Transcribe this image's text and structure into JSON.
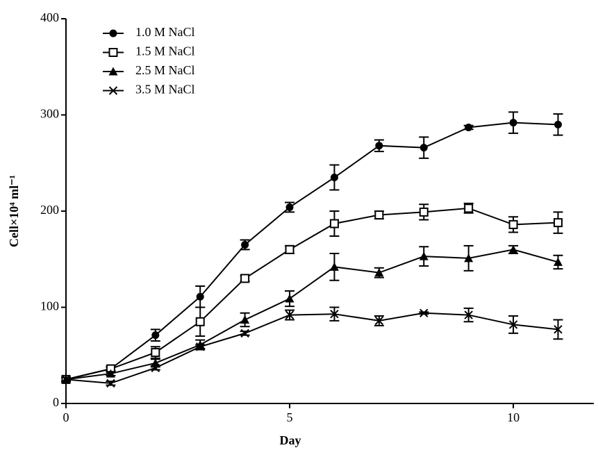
{
  "chart_data": {
    "type": "line",
    "x_label": "Day",
    "y_label": "Cell×10⁴ ml⁻¹",
    "x": [
      0,
      1,
      2,
      3,
      4,
      5,
      6,
      7,
      8,
      9,
      10,
      11
    ],
    "series": [
      {
        "name": "1.0 M NaCl",
        "color": "#000000",
        "marker": "circle",
        "values": [
          25,
          36,
          71,
          111,
          165,
          204,
          235,
          268,
          266,
          287,
          292,
          290
        ],
        "errors": [
          2,
          2,
          6,
          11,
          5,
          5,
          13,
          6,
          11,
          2,
          11,
          11
        ]
      },
      {
        "name": "1.5 M NaCl",
        "color": "#000000",
        "marker": "square",
        "values": [
          25,
          36,
          53,
          85,
          130,
          160,
          187,
          196,
          199,
          203,
          186,
          188
        ],
        "errors": [
          2,
          2,
          6,
          15,
          3,
          4,
          13,
          4,
          8,
          5,
          8,
          11
        ]
      },
      {
        "name": "2.5 M NaCl",
        "color": "#000000",
        "marker": "triangle",
        "values": [
          25,
          31,
          42,
          61,
          87,
          109,
          142,
          136,
          153,
          151,
          160,
          147
        ],
        "errors": [
          2,
          2,
          4,
          5,
          7,
          8,
          14,
          5,
          10,
          13,
          4,
          7
        ]
      },
      {
        "name": "3.5 M NaCl",
        "color": "#000000",
        "marker": "x",
        "values": [
          25,
          21,
          37,
          59,
          73,
          92,
          93,
          86,
          94,
          92,
          82,
          77
        ],
        "errors": [
          2,
          2,
          2,
          2,
          2,
          5,
          7,
          5,
          1,
          7,
          9,
          10
        ]
      }
    ],
    "xlim": [
      0,
      11.8
    ],
    "xticks": [
      0,
      5,
      10
    ],
    "ylim": [
      0,
      400
    ],
    "yticks": [
      0,
      100,
      200,
      300,
      400
    ],
    "grid": false,
    "legend": "upper-left"
  }
}
